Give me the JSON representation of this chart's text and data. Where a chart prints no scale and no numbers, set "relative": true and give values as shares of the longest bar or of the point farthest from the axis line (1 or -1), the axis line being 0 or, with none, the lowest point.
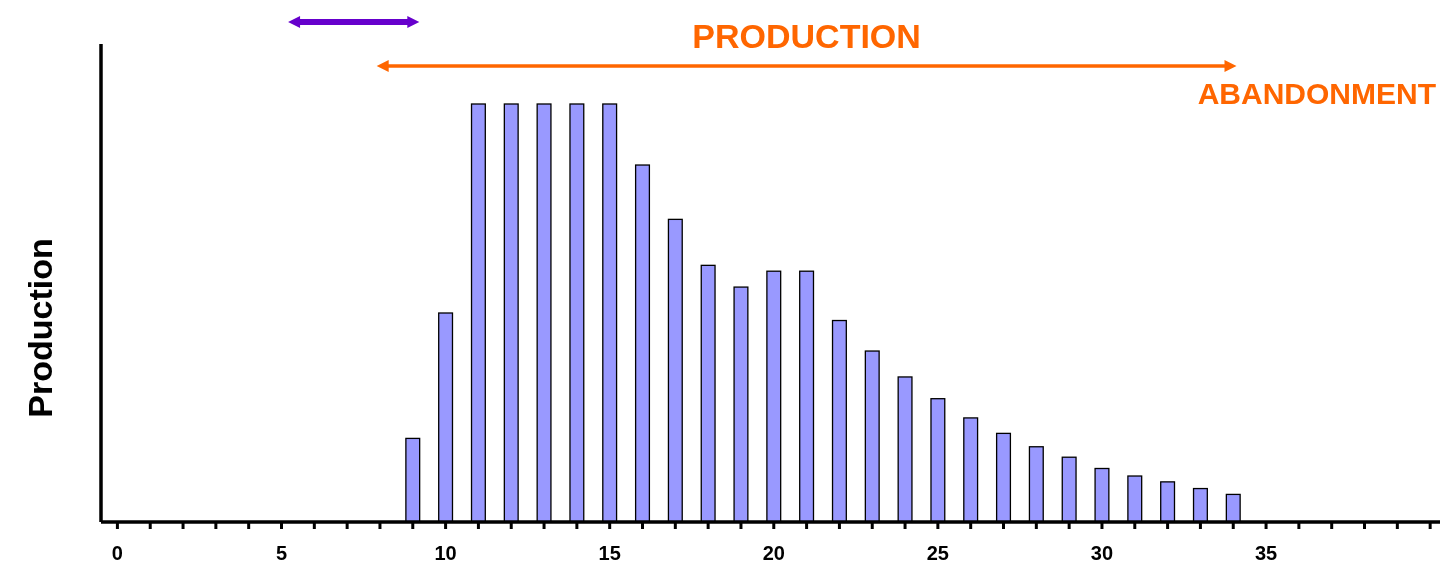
{
  "chart_data": {
    "type": "bar",
    "ylabel": "Production",
    "relative": true,
    "x": [
      9,
      10,
      11,
      12,
      13,
      14,
      15,
      16,
      17,
      18,
      19,
      20,
      21,
      22,
      23,
      24,
      25,
      26,
      27,
      28,
      29,
      30,
      31,
      32,
      33,
      34
    ],
    "values": [
      0.2,
      0.5,
      1,
      1,
      1,
      1,
      1,
      0.854,
      0.724,
      0.614,
      0.562,
      0.6,
      0.6,
      0.482,
      0.409,
      0.347,
      0.295,
      0.249,
      0.212,
      0.18,
      0.155,
      0.128,
      0.11,
      0.096,
      0.08,
      0.066
    ],
    "color": "#9999ff",
    "xlim": [
      -0.5,
      40.3
    ],
    "xticks": [
      0,
      {
        "value": 1,
        "label": null
      },
      {
        "value": 2,
        "label": null
      },
      {
        "value": 3,
        "label": null
      },
      {
        "value": 4,
        "label": null
      },
      5,
      {
        "value": 6,
        "label": null
      },
      {
        "value": 7,
        "label": null
      },
      {
        "value": 8,
        "label": null
      },
      {
        "value": 9,
        "label": null
      },
      10,
      {
        "value": 11,
        "label": null
      },
      {
        "value": 12,
        "label": null
      },
      {
        "value": 13,
        "label": null
      },
      {
        "value": 14,
        "label": null
      },
      15,
      {
        "value": 16,
        "label": null
      },
      {
        "value": 17,
        "label": null
      },
      {
        "value": 18,
        "label": null
      },
      {
        "value": 19,
        "label": null
      },
      20,
      {
        "value": 21,
        "label": null
      },
      {
        "value": 22,
        "label": null
      },
      {
        "value": 23,
        "label": null
      },
      {
        "value": 24,
        "label": null
      },
      25,
      {
        "value": 26,
        "label": null
      },
      {
        "value": 27,
        "label": null
      },
      {
        "value": 28,
        "label": null
      },
      {
        "value": 29,
        "label": null
      },
      30,
      {
        "value": 31,
        "label": null
      },
      {
        "value": 32,
        "label": null
      },
      {
        "value": 33,
        "label": null
      },
      {
        "value": 34,
        "label": null
      },
      35,
      {
        "value": 36,
        "label": null
      },
      {
        "value": 37,
        "label": null
      },
      {
        "value": 38,
        "label": null
      },
      {
        "value": 39,
        "label": null
      },
      {
        "value": 40,
        "label": null
      }
    ],
    "annotations": [
      "PRODUCTION",
      "ABANDONMENT"
    ]
  }
}
